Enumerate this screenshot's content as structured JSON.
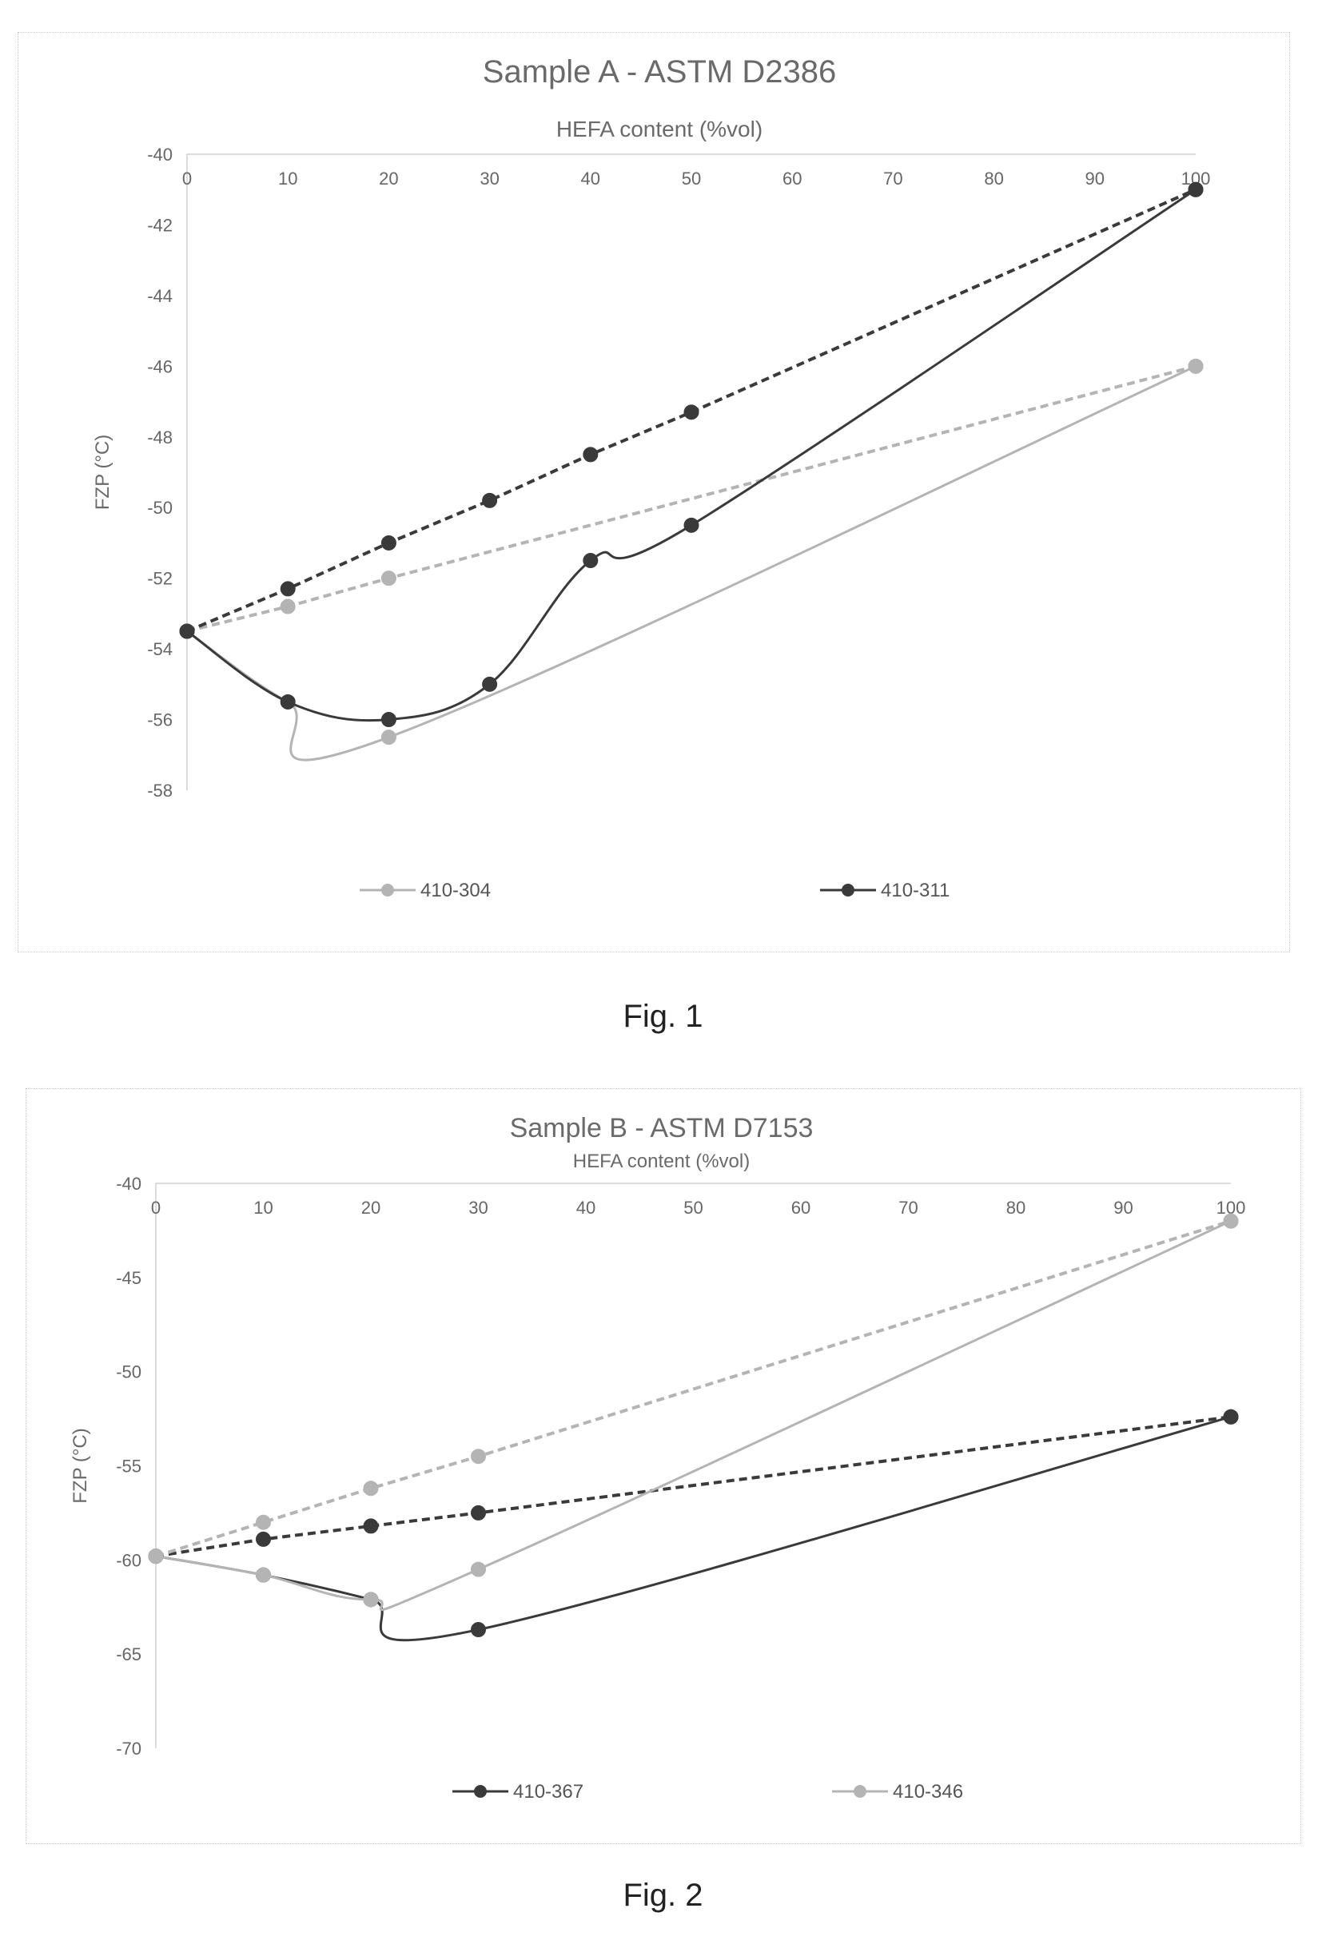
{
  "chart_data": [
    {
      "type": "line",
      "title": "Sample A - ASTM D2386",
      "xlabel": "HEFA content (%vol)",
      "ylabel": "FZP (°C)",
      "xlim": [
        0,
        100
      ],
      "ylim": [
        -58,
        -40
      ],
      "xticks": [
        0,
        10,
        20,
        30,
        40,
        50,
        60,
        70,
        80,
        90,
        100
      ],
      "yticks": [
        -40,
        -42,
        -44,
        -46,
        -48,
        -50,
        -52,
        -54,
        -56,
        -58
      ],
      "x_axis_position": "top",
      "grid": false,
      "legend_position": "bottom",
      "series": [
        {
          "name": "410-304",
          "color": "#b4b4b4",
          "style": "solid",
          "smooth": true,
          "markers": true,
          "x": [
            0,
            10,
            20,
            100
          ],
          "y": [
            -53.5,
            -55.5,
            -56.5,
            -46
          ]
        },
        {
          "name": "",
          "color": "#b4b4b4",
          "style": "dashed",
          "smooth": false,
          "markers": true,
          "x": [
            0,
            10,
            20,
            100
          ],
          "y": [
            -53.5,
            -52.8,
            -52,
            -46
          ]
        },
        {
          "name": "410-311",
          "color": "#3a3a3a",
          "style": "solid",
          "smooth": true,
          "markers": true,
          "x": [
            0,
            10,
            20,
            30,
            40,
            50,
            100
          ],
          "y": [
            -53.5,
            -55.5,
            -56,
            -55,
            -51.5,
            -50.5,
            -41
          ]
        },
        {
          "name": "",
          "color": "#3a3a3a",
          "style": "dashed",
          "smooth": false,
          "markers": true,
          "x": [
            0,
            10,
            20,
            30,
            40,
            50,
            100
          ],
          "y": [
            -53.5,
            -52.3,
            -51,
            -49.8,
            -48.5,
            -47.3,
            -41
          ]
        }
      ]
    },
    {
      "type": "line",
      "title": "Sample B - ASTM D7153",
      "xlabel": "HEFA content (%vol)",
      "ylabel": "FZP (°C)",
      "xlim": [
        0,
        100
      ],
      "ylim": [
        -70,
        -40
      ],
      "xticks": [
        0,
        10,
        20,
        30,
        40,
        50,
        60,
        70,
        80,
        90,
        100
      ],
      "yticks": [
        -40,
        -45,
        -50,
        -55,
        -60,
        -65,
        -70
      ],
      "x_axis_position": "top",
      "grid": false,
      "legend_position": "bottom",
      "series": [
        {
          "name": "410-367",
          "color": "#3a3a3a",
          "style": "solid",
          "smooth": true,
          "markers": true,
          "x": [
            0,
            10,
            20,
            30,
            100
          ],
          "y": [
            -59.8,
            -60.8,
            -62.1,
            -63.7,
            -52.4
          ]
        },
        {
          "name": "",
          "color": "#3a3a3a",
          "style": "dashed",
          "smooth": false,
          "markers": true,
          "x": [
            0,
            10,
            20,
            30,
            100
          ],
          "y": [
            -59.8,
            -58.9,
            -58.2,
            -57.5,
            -52.4
          ]
        },
        {
          "name": "410-346",
          "color": "#b4b4b4",
          "style": "solid",
          "smooth": true,
          "markers": true,
          "x": [
            0,
            10,
            20,
            30,
            100
          ],
          "y": [
            -59.8,
            -60.8,
            -62.1,
            -60.5,
            -42
          ]
        },
        {
          "name": "",
          "color": "#b4b4b4",
          "style": "dashed",
          "smooth": false,
          "markers": true,
          "x": [
            0,
            10,
            20,
            30,
            100
          ],
          "y": [
            -59.8,
            -58,
            -56.2,
            -54.5,
            -42
          ]
        }
      ]
    }
  ],
  "captions": {
    "fig1": "Fig. 1",
    "fig2": "Fig. 2"
  }
}
